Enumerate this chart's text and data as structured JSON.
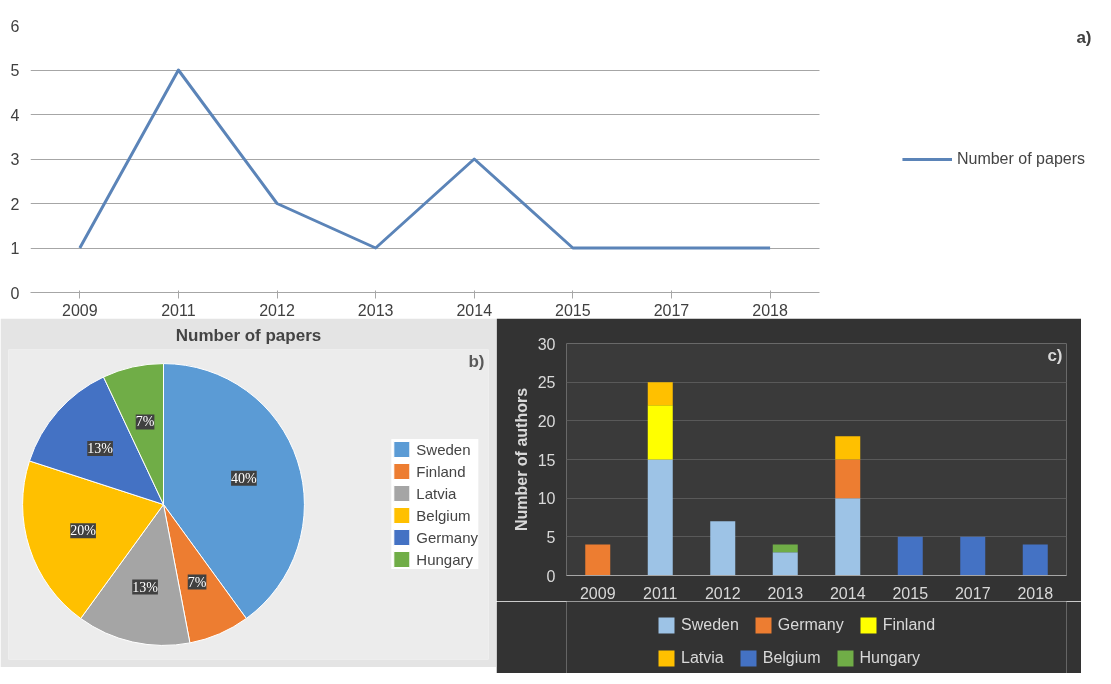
{
  "chart_data": [
    {
      "type": "line",
      "categories": [
        "2009",
        "2011",
        "2012",
        "2013",
        "2014",
        "2015",
        "2017",
        "2018"
      ],
      "series": [
        {
          "name": "Number of papers",
          "color": "#5b84b8",
          "values": [
            1,
            5,
            2,
            1,
            3,
            1,
            1,
            1
          ]
        }
      ],
      "ylim": [
        0,
        6
      ],
      "yticks": [
        0,
        1,
        2,
        3,
        4,
        5,
        6
      ],
      "grid": "y",
      "legend": "right",
      "marker": "none",
      "line_style": "solid",
      "annotations": [
        "a)"
      ]
    },
    {
      "type": "pie",
      "title": "Number of papers",
      "categories": [
        "Sweden",
        "Finland",
        "Latvia",
        "Belgium",
        "Germany",
        "Hungary"
      ],
      "values": [
        40,
        7,
        13,
        20,
        13,
        7
      ],
      "colors": [
        "#5b9bd5",
        "#ed7d31",
        "#a5a5a5",
        "#ffc000",
        "#4472c4",
        "#70ad47"
      ],
      "value_labels": [
        "40%",
        "7%",
        "13%",
        "20%",
        "13%",
        "7%"
      ],
      "legend": "right",
      "annotations": [
        "b)"
      ]
    },
    {
      "type": "bar",
      "stacked": true,
      "ylabel": "Number of authors",
      "categories": [
        "2009",
        "2011",
        "2012",
        "2013",
        "2014",
        "2015",
        "2017",
        "2018"
      ],
      "series": [
        {
          "name": "Sweden",
          "color": "#9dc3e6",
          "values": [
            0,
            15,
            7,
            3,
            10,
            0,
            0,
            0
          ]
        },
        {
          "name": "Germany",
          "color": "#ed7d31",
          "values": [
            4,
            0,
            0,
            0,
            5,
            0,
            0,
            0
          ]
        },
        {
          "name": "Finland",
          "color": "#ffff00",
          "values": [
            0,
            7,
            0,
            0,
            0,
            0,
            0,
            0
          ]
        },
        {
          "name": "Latvia",
          "color": "#ffc000",
          "values": [
            0,
            3,
            0,
            0,
            3,
            0,
            0,
            0
          ]
        },
        {
          "name": "Belgium",
          "color": "#4472c4",
          "values": [
            0,
            0,
            0,
            0,
            0,
            5,
            5,
            4
          ]
        },
        {
          "name": "Hungary",
          "color": "#70ad47",
          "values": [
            0,
            0,
            0,
            1,
            0,
            0,
            0,
            0
          ]
        }
      ],
      "ylim": [
        0,
        30
      ],
      "yticks": [
        0,
        5,
        10,
        15,
        20,
        25,
        30
      ],
      "grid": "y",
      "legend": "bottom",
      "annotations": [
        "c)"
      ]
    }
  ]
}
